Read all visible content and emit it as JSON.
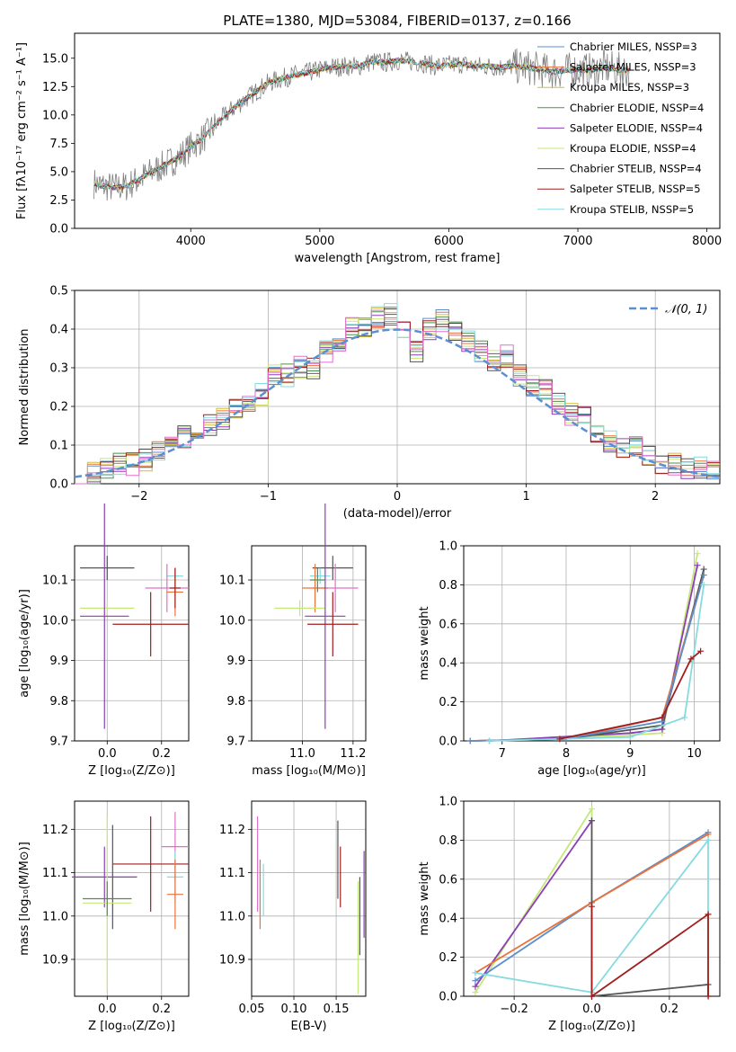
{
  "colors": {
    "chabrier_miles": "#5b8fd0",
    "salpeter_miles": "#e8733a",
    "kroupa_miles": "#cdbf3a",
    "chabrier_elodie": "#4f8f4f",
    "salpeter_elodie": "#8b3fb5",
    "kroupa_elodie": "#c5e87a",
    "chabrier_stelib": "#555555",
    "salpeter_stelib": "#a01e1e",
    "kroupa_stelib": "#86dbe0",
    "extra": "#e070c8"
  },
  "chart_data": [
    {
      "id": "spectrum",
      "type": "line",
      "title": "PLATE=1380, MJD=53084, FIBERID=0137, z=0.166",
      "xlabel": "wavelength [Angstrom, rest frame]",
      "ylabel": "Flux [fλ10⁻¹⁷ erg cm⁻² s⁻¹ A⁻¹]",
      "xlim": [
        3100,
        8100
      ],
      "ylim": [
        0,
        17.2
      ],
      "xticks": [
        4000,
        5000,
        6000,
        7000,
        8000
      ],
      "yticks": [
        0.0,
        2.5,
        5.0,
        7.5,
        10.0,
        12.5,
        15.0
      ],
      "grid": false,
      "legend_position": "upper-right",
      "data_curve": {
        "x": [
          3250,
          3300,
          3400,
          3500,
          3600,
          3700,
          3800,
          3900,
          4000,
          4100,
          4200,
          4300,
          4400,
          4500,
          4600,
          4700,
          4800,
          4900,
          5000,
          5100,
          5200,
          5300,
          5400,
          5500,
          5600,
          5700,
          5800,
          5900,
          6000,
          6100,
          6200,
          6300,
          6400,
          6500,
          6600,
          6700,
          6800,
          6900,
          7000,
          7100,
          7200,
          7300,
          7400
        ],
        "y": [
          4.0,
          3.8,
          3.6,
          3.7,
          4.3,
          5.0,
          5.6,
          6.2,
          7.2,
          8.0,
          9.2,
          10.3,
          11.2,
          12.0,
          12.8,
          13.2,
          13.5,
          13.7,
          14.0,
          14.2,
          14.3,
          14.3,
          14.7,
          14.6,
          14.8,
          14.7,
          14.6,
          14.3,
          14.4,
          14.5,
          14.3,
          14.3,
          14.2,
          14.3,
          14.2,
          14.0,
          13.8,
          13.9,
          14.0,
          13.9,
          14.2,
          14.0,
          13.9
        ]
      },
      "series": [
        {
          "name": "Chabrier MILES, N_SSP=3",
          "color_key": "chabrier_miles"
        },
        {
          "name": "Salpeter MILES, N_SSP=3",
          "color_key": "salpeter_miles"
        },
        {
          "name": "Kroupa MILES, N_SSP=3",
          "color_key": "kroupa_miles"
        },
        {
          "name": "Chabrier ELODIE, N_SSP=4",
          "color_key": "chabrier_elodie"
        },
        {
          "name": "Salpeter ELODIE, N_SSP=4",
          "color_key": "salpeter_elodie"
        },
        {
          "name": "Kroupa ELODIE, N_SSP=4",
          "color_key": "kroupa_elodie"
        },
        {
          "name": "Chabrier STELIB, N_SSP=4",
          "color_key": "chabrier_stelib"
        },
        {
          "name": "Salpeter STELIB, N_SSP=5",
          "color_key": "salpeter_stelib"
        },
        {
          "name": "Kroupa STELIB, N_SSP=5",
          "color_key": "kroupa_stelib"
        }
      ]
    },
    {
      "id": "residuals",
      "type": "line",
      "xlabel": "(data-model)/error",
      "ylabel": "Normed distribution",
      "xlim": [
        -2.5,
        2.5
      ],
      "ylim": [
        0,
        0.5
      ],
      "xticks": [
        -2,
        -1,
        0,
        1,
        2
      ],
      "yticks": [
        0.0,
        0.1,
        0.2,
        0.3,
        0.4,
        0.5
      ],
      "grid": true,
      "legend_position": "upper-right",
      "legend": "𝒩(0, 1)",
      "gaussian": {
        "mean": 0,
        "sigma": 1
      },
      "hist_centers": [
        -2.45,
        -2.35,
        -2.25,
        -2.15,
        -2.05,
        -1.95,
        -1.85,
        -1.75,
        -1.65,
        -1.55,
        -1.45,
        -1.35,
        -1.25,
        -1.15,
        -1.05,
        -0.95,
        -0.85,
        -0.75,
        -0.65,
        -0.55,
        -0.45,
        -0.35,
        -0.25,
        -0.15,
        -0.05,
        0.05,
        0.15,
        0.25,
        0.35,
        0.45,
        0.55,
        0.65,
        0.75,
        0.85,
        0.95,
        1.05,
        1.15,
        1.25,
        1.35,
        1.45,
        1.55,
        1.65,
        1.75,
        1.85,
        1.95,
        2.05,
        2.15,
        2.25,
        2.35,
        2.45
      ],
      "hist_values": [
        0.02,
        0.03,
        0.04,
        0.05,
        0.05,
        0.06,
        0.08,
        0.1,
        0.12,
        0.14,
        0.15,
        0.17,
        0.2,
        0.2,
        0.23,
        0.28,
        0.28,
        0.3,
        0.3,
        0.34,
        0.36,
        0.4,
        0.41,
        0.43,
        0.44,
        0.4,
        0.34,
        0.4,
        0.42,
        0.4,
        0.37,
        0.34,
        0.32,
        0.33,
        0.28,
        0.25,
        0.24,
        0.21,
        0.18,
        0.17,
        0.13,
        0.11,
        0.09,
        0.1,
        0.07,
        0.05,
        0.05,
        0.04,
        0.04,
        0.03
      ]
    },
    {
      "id": "age-vs-z",
      "type": "scatter",
      "xlabel": "Z [log₁₀(Z/Z⊙)]",
      "ylabel": "age  [log₁₀(age/yr)]",
      "xlim": [
        -0.12,
        0.3
      ],
      "ylim": [
        9.7,
        10.185
      ],
      "xticks": [
        0.0,
        0.2
      ],
      "xtick_labels": [
        "0.0",
        "0.2"
      ],
      "yticks": [
        9.7,
        9.8,
        9.9,
        10.0,
        10.1
      ],
      "grid": true,
      "points": [
        {
          "x": 0.0,
          "y": 10.13,
          "xerr": 0.1,
          "yerr": 0.03,
          "color_key": "chabrier_stelib"
        },
        {
          "x": 0.25,
          "y": 10.11,
          "xerr": 0.03,
          "yerr": 0.02,
          "color_key": "kroupa_stelib"
        },
        {
          "x": 0.22,
          "y": 10.08,
          "xerr": 0.08,
          "yerr": 0.06,
          "color_key": "extra"
        },
        {
          "x": 0.25,
          "y": 10.07,
          "xerr": 0.03,
          "yerr": 0.06,
          "color_key": "salpeter_miles"
        },
        {
          "x": 0.0,
          "y": 10.03,
          "xerr": 0.1,
          "yerr": 0.02,
          "color_key": "kroupa_elodie"
        },
        {
          "x": -0.01,
          "y": 10.01,
          "xerr": 0.09,
          "yerr": 0.28,
          "color_key": "salpeter_elodie"
        },
        {
          "x": 0.16,
          "y": 9.99,
          "xerr": 0.14,
          "yerr": 0.08,
          "color_key": "salpeter_stelib"
        },
        {
          "x": 0.25,
          "y": 10.08,
          "xerr": 0.02,
          "yerr": 0.05,
          "color_key": "salpeter_stelib"
        }
      ]
    },
    {
      "id": "age-vs-mass",
      "type": "scatter",
      "xlabel": "mass [log₁₀(M/M⊙)]",
      "ylabel": "",
      "xlim": [
        10.8,
        11.25
      ],
      "ylim": [
        9.7,
        10.185
      ],
      "xticks": [
        11.0,
        11.2
      ],
      "xtick_labels": [
        "11.0",
        "11.2"
      ],
      "yticks": [
        9.7,
        9.8,
        9.9,
        10.0,
        10.1
      ],
      "grid": true,
      "points": [
        {
          "x": 11.12,
          "y": 10.13,
          "xerr": 0.08,
          "yerr": 0.03,
          "color_key": "chabrier_stelib"
        },
        {
          "x": 11.07,
          "y": 10.11,
          "xerr": 0.04,
          "yerr": 0.02,
          "color_key": "kroupa_stelib"
        },
        {
          "x": 11.13,
          "y": 10.08,
          "xerr": 0.09,
          "yerr": 0.06,
          "color_key": "extra"
        },
        {
          "x": 11.05,
          "y": 10.08,
          "xerr": 0.05,
          "yerr": 0.06,
          "color_key": "salpeter_miles"
        },
        {
          "x": 10.99,
          "y": 10.03,
          "xerr": 0.1,
          "yerr": 0.02,
          "color_key": "kroupa_elodie"
        },
        {
          "x": 11.09,
          "y": 10.01,
          "xerr": 0.08,
          "yerr": 0.28,
          "color_key": "salpeter_elodie"
        },
        {
          "x": 11.12,
          "y": 9.99,
          "xerr": 0.1,
          "yerr": 0.08,
          "color_key": "salpeter_stelib"
        },
        {
          "x": 11.06,
          "y": 10.1,
          "xerr": 0.03,
          "yerr": 0.03,
          "color_key": "chabrier_elodie"
        }
      ]
    },
    {
      "id": "mass-weight-vs-age",
      "type": "line",
      "xlabel": "age  [log₁₀(age/yr)]",
      "ylabel": "mass weight",
      "xlim": [
        6.4,
        10.4
      ],
      "ylim": [
        0,
        1
      ],
      "xticks": [
        7,
        8,
        9,
        10
      ],
      "yticks": [
        0.0,
        0.2,
        0.4,
        0.6,
        0.8,
        1.0
      ],
      "grid": true,
      "series": [
        {
          "color_key": "kroupa_elodie",
          "x": [
            6.8,
            9.0,
            9.5,
            10.05
          ],
          "y": [
            0.0,
            0.03,
            0.04,
            0.96
          ]
        },
        {
          "color_key": "salpeter_elodie",
          "x": [
            6.8,
            9.0,
            9.5,
            10.05
          ],
          "y": [
            0.0,
            0.04,
            0.06,
            0.9
          ]
        },
        {
          "color_key": "chabrier_stelib",
          "x": [
            6.5,
            8.0,
            9.5,
            10.15
          ],
          "y": [
            0.0,
            0.01,
            0.08,
            0.88
          ]
        },
        {
          "color_key": "salpeter_miles",
          "x": [
            6.5,
            8.0,
            9.5,
            10.15
          ],
          "y": [
            0.0,
            0.01,
            0.12,
            0.85
          ]
        },
        {
          "color_key": "chabrier_miles",
          "x": [
            6.5,
            8.0,
            9.5,
            10.15
          ],
          "y": [
            0.0,
            0.01,
            0.1,
            0.85
          ]
        },
        {
          "color_key": "kroupa_stelib",
          "x": [
            6.8,
            9.0,
            9.85,
            10.15
          ],
          "y": [
            0.0,
            0.02,
            0.12,
            0.8
          ]
        },
        {
          "color_key": "salpeter_stelib",
          "x": [
            7.9,
            9.5,
            9.95,
            10.1
          ],
          "y": [
            0.01,
            0.12,
            0.42,
            0.46
          ]
        }
      ]
    },
    {
      "id": "mass-vs-z",
      "type": "scatter",
      "xlabel": "Z [log₁₀(Z/Z⊙)]",
      "ylabel": "mass [log₁₀(M/M⊙)]",
      "xlim": [
        -0.12,
        0.3
      ],
      "ylim": [
        10.815,
        11.265
      ],
      "xticks": [
        0.0,
        0.2
      ],
      "xtick_labels": [
        "0.0",
        "0.2"
      ],
      "yticks": [
        10.9,
        11.0,
        11.1,
        11.2
      ],
      "grid": true,
      "points": [
        {
          "x": 0.02,
          "y": 11.09,
          "xerr": 0.0,
          "yerr": 0.12,
          "color_key": "chabrier_stelib"
        },
        {
          "x": -0.01,
          "y": 11.09,
          "xerr": 0.12,
          "yerr": 0.07,
          "color_key": "salpeter_elodie"
        },
        {
          "x": 0.16,
          "y": 11.12,
          "xerr": 0.14,
          "yerr": 0.11,
          "color_key": "salpeter_stelib"
        },
        {
          "x": 0.25,
          "y": 11.16,
          "xerr": 0.05,
          "yerr": 0.08,
          "color_key": "extra"
        },
        {
          "x": 0.25,
          "y": 11.09,
          "xerr": 0.03,
          "yerr": 0.06,
          "color_key": "kroupa_stelib"
        },
        {
          "x": 0.25,
          "y": 11.05,
          "xerr": 0.03,
          "yerr": 0.08,
          "color_key": "salpeter_miles"
        },
        {
          "x": 0.0,
          "y": 11.03,
          "xerr": 0.09,
          "yerr": 0.2,
          "color_key": "kroupa_elodie"
        },
        {
          "x": 0.0,
          "y": 11.04,
          "xerr": 0.09,
          "yerr": 0.04,
          "color_key": "chabrier_elodie"
        }
      ]
    },
    {
      "id": "mass-vs-ebv",
      "type": "scatter",
      "xlabel": "E(B-V)",
      "ylabel": "",
      "xlim": [
        0.05,
        0.185
      ],
      "ylim": [
        10.815,
        11.265
      ],
      "xticks": [
        0.05,
        0.1,
        0.15
      ],
      "xtick_labels": [
        "0.05",
        "0.10",
        "0.15"
      ],
      "yticks": [
        10.9,
        11.0,
        11.1,
        11.2
      ],
      "grid": true,
      "points": [
        {
          "x": 0.057,
          "y": 11.12,
          "xerr": 0,
          "yerr": 0.11,
          "color_key": "extra"
        },
        {
          "x": 0.06,
          "y": 11.05,
          "xerr": 0,
          "yerr": 0.08,
          "color_key": "salpeter_miles"
        },
        {
          "x": 0.064,
          "y": 11.06,
          "xerr": 0,
          "yerr": 0.06,
          "color_key": "kroupa_stelib"
        },
        {
          "x": 0.152,
          "y": 11.13,
          "xerr": 0,
          "yerr": 0.09,
          "color_key": "chabrier_stelib"
        },
        {
          "x": 0.155,
          "y": 11.09,
          "xerr": 0,
          "yerr": 0.07,
          "color_key": "salpeter_stelib"
        },
        {
          "x": 0.176,
          "y": 10.95,
          "xerr": 0,
          "yerr": 0.13,
          "color_key": "kroupa_elodie"
        },
        {
          "x": 0.178,
          "y": 11.0,
          "xerr": 0,
          "yerr": 0.09,
          "color_key": "chabrier_stelib"
        },
        {
          "x": 0.183,
          "y": 11.05,
          "xerr": 0,
          "yerr": 0.1,
          "color_key": "salpeter_elodie"
        }
      ]
    },
    {
      "id": "mass-weight-vs-z",
      "type": "line",
      "xlabel": "Z [log₁₀(Z/Z⊙)]",
      "ylabel": "mass weight",
      "xlim": [
        -0.33,
        0.33
      ],
      "ylim": [
        0,
        1
      ],
      "xticks": [
        -0.2,
        0.0,
        0.2
      ],
      "xtick_labels": [
        "−0.2",
        "0.0",
        "0.2"
      ],
      "yticks": [
        0.0,
        0.2,
        0.4,
        0.6,
        0.8,
        1.0
      ],
      "grid": true,
      "series": [
        {
          "color_key": "kroupa_elodie",
          "x": [
            -0.3,
            0.0,
            0.0
          ],
          "y": [
            0.02,
            0.96,
            0.9
          ]
        },
        {
          "color_key": "salpeter_elodie",
          "x": [
            -0.3,
            0.0
          ],
          "y": [
            0.05,
            0.9
          ]
        },
        {
          "color_key": "chabrier_miles",
          "x": [
            -0.3,
            0.0,
            0.3
          ],
          "y": [
            0.08,
            0.48,
            0.84
          ]
        },
        {
          "color_key": "salpeter_miles",
          "x": [
            -0.3,
            0.0,
            0.3
          ],
          "y": [
            0.12,
            0.48,
            0.83
          ]
        },
        {
          "color_key": "kroupa_stelib",
          "x": [
            -0.3,
            0.0,
            0.3,
            0.3
          ],
          "y": [
            0.12,
            0.02,
            0.8,
            0.0
          ]
        },
        {
          "color_key": "chabrier_stelib",
          "x": [
            0.0,
            0.0,
            0.3,
            0.3
          ],
          "y": [
            0.9,
            0.0,
            0.06,
            0.0
          ]
        },
        {
          "color_key": "salpeter_stelib",
          "x": [
            0.0,
            0.0,
            0.3,
            0.3
          ],
          "y": [
            0.46,
            0.0,
            0.42,
            0.0
          ]
        }
      ]
    }
  ]
}
